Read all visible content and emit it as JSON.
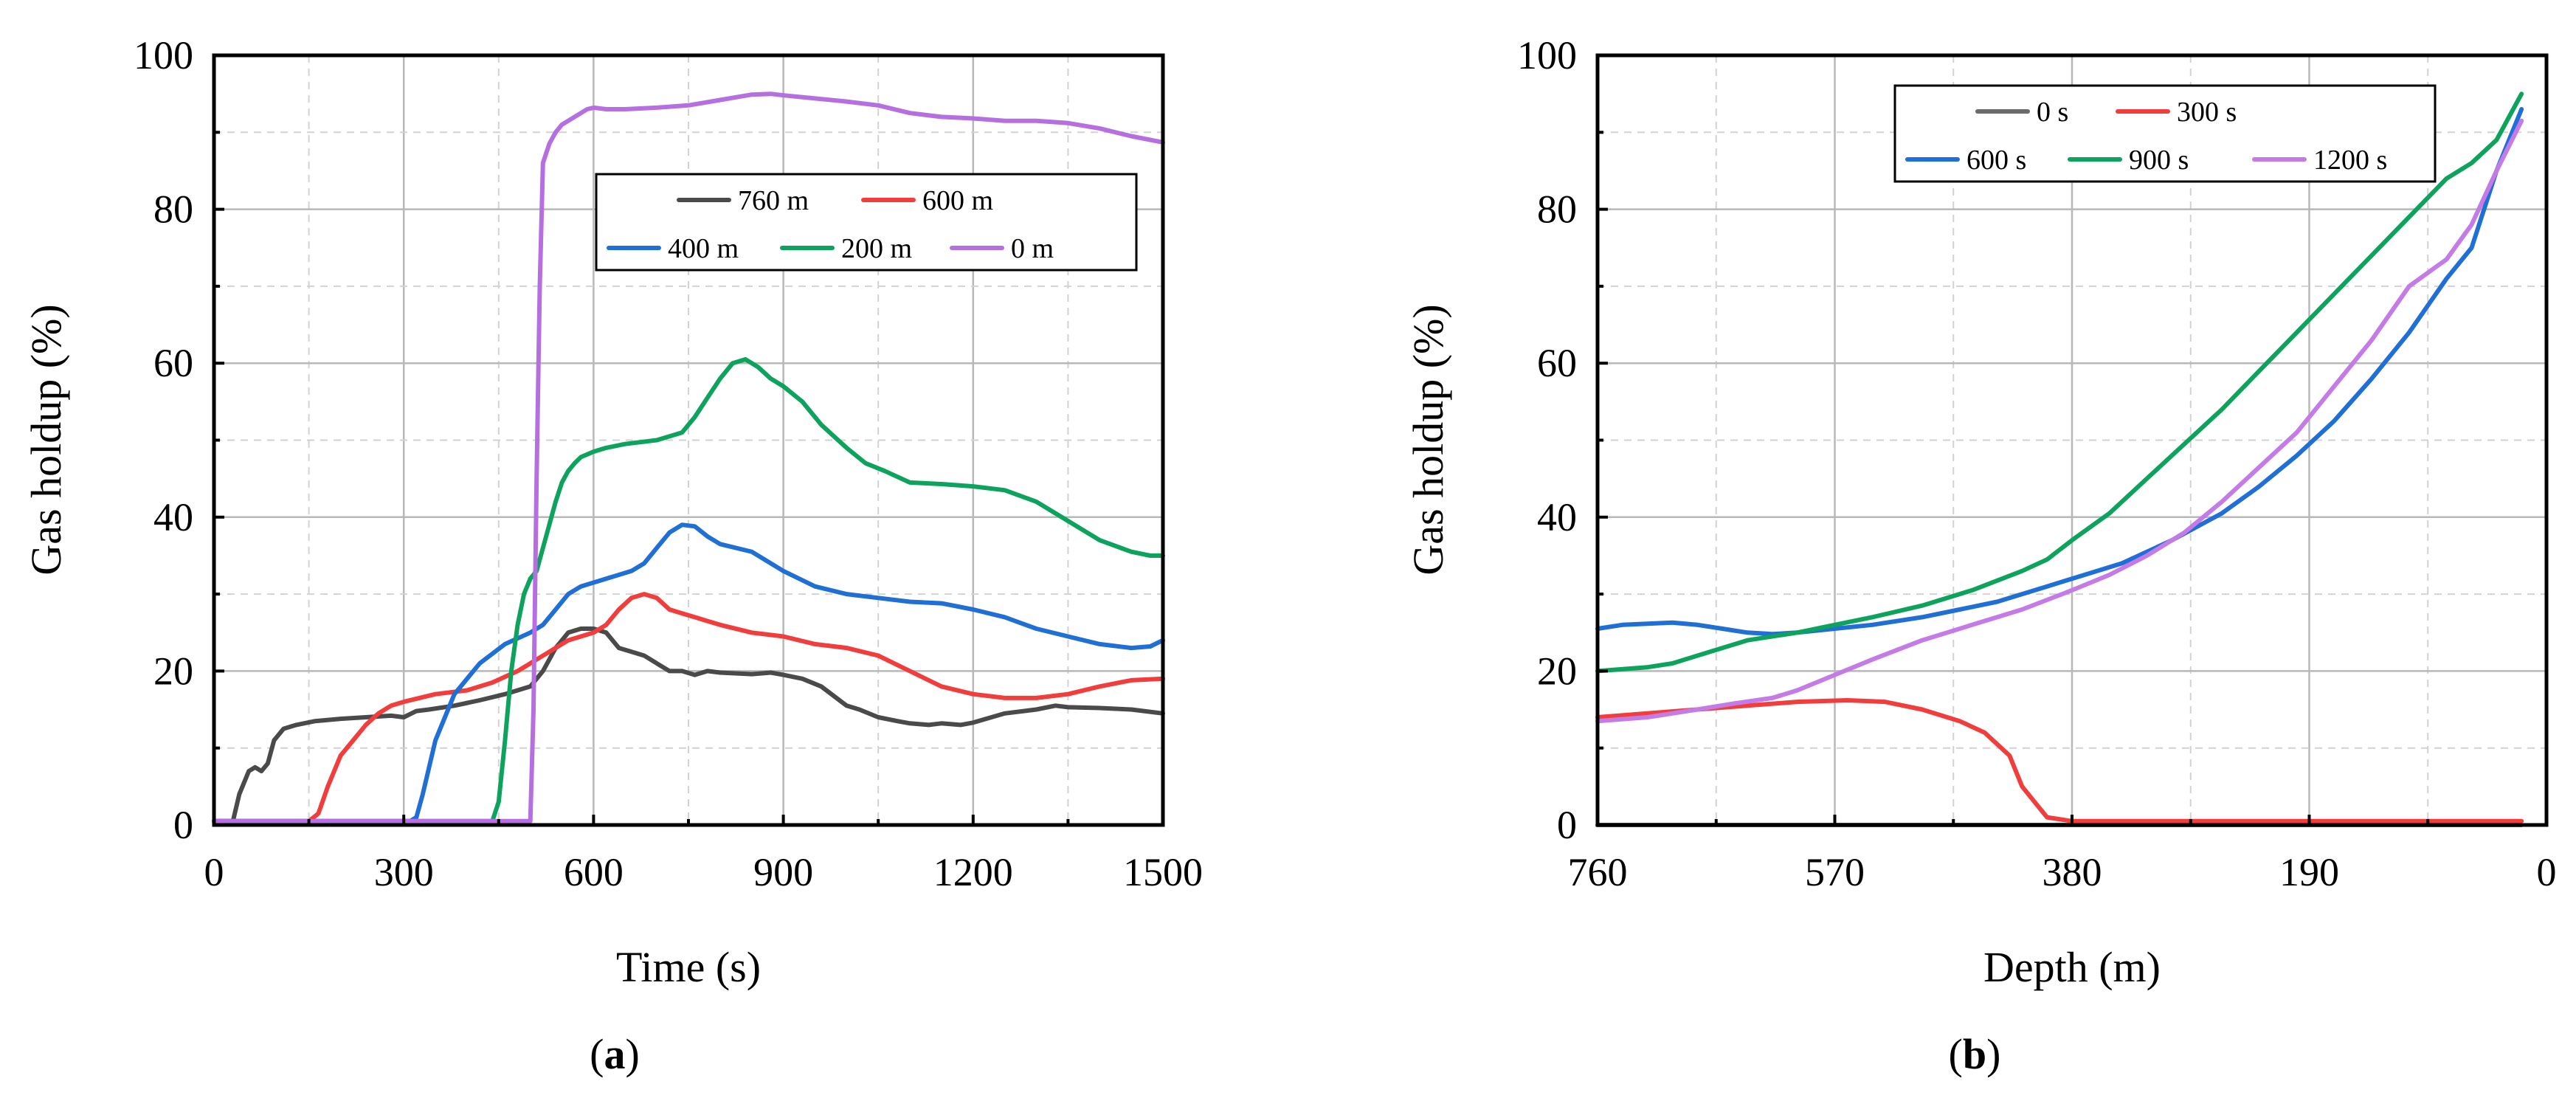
{
  "chart_data": [
    {
      "type": "line",
      "panel_label": "a",
      "xlabel": "Time (s)",
      "ylabel": "Gas holdup (%)",
      "xlim": [
        0,
        1500
      ],
      "ylim": [
        0,
        100
      ],
      "x_reversed": false,
      "xticks": [
        0,
        300,
        600,
        900,
        1200,
        1500
      ],
      "yticks": [
        0,
        20,
        40,
        60,
        80,
        100
      ],
      "legend_position": "upper-right",
      "legend_rows": [
        [
          0,
          1
        ],
        [
          2,
          3,
          4
        ]
      ],
      "series": [
        {
          "name": "760 m",
          "color": "#4a4a4a",
          "x": [
            0,
            20,
            30,
            40,
            55,
            65,
            75,
            85,
            95,
            110,
            130,
            160,
            200,
            240,
            280,
            300,
            320,
            340,
            380,
            420,
            460,
            500,
            520,
            540,
            560,
            580,
            600,
            620,
            640,
            660,
            680,
            700,
            720,
            740,
            760,
            780,
            800,
            850,
            880,
            900,
            930,
            960,
            1000,
            1020,
            1050,
            1080,
            1100,
            1130,
            1150,
            1180,
            1200,
            1250,
            1300,
            1330,
            1350,
            1400,
            1450,
            1500
          ],
          "y": [
            0.5,
            0.5,
            0.5,
            4,
            7,
            7.5,
            7,
            8,
            11,
            12.5,
            13,
            13.5,
            13.8,
            14,
            14.2,
            14,
            14.8,
            15,
            15.5,
            16.2,
            17,
            18,
            20,
            23,
            25,
            25.5,
            25.5,
            25,
            23,
            22.5,
            22,
            21,
            20,
            20,
            19.5,
            20,
            19.8,
            19.6,
            19.8,
            19.5,
            19,
            18,
            15.5,
            15,
            14,
            13.5,
            13.2,
            13,
            13.2,
            13,
            13.3,
            14.5,
            15,
            15.5,
            15.3,
            15.2,
            15,
            14.5
          ]
        },
        {
          "name": "600 m",
          "color": "#f23d3d",
          "x": [
            0,
            150,
            165,
            180,
            200,
            220,
            240,
            260,
            280,
            300,
            350,
            400,
            440,
            480,
            500,
            520,
            540,
            560,
            580,
            600,
            620,
            640,
            660,
            680,
            700,
            720,
            740,
            760,
            780,
            800,
            850,
            900,
            950,
            1000,
            1050,
            1100,
            1150,
            1200,
            1250,
            1300,
            1350,
            1400,
            1450,
            1500
          ],
          "y": [
            0.5,
            0.5,
            1.5,
            5,
            9,
            11,
            13,
            14.5,
            15.5,
            16,
            17,
            17.5,
            18.5,
            20,
            21,
            22,
            23,
            24,
            24.5,
            25,
            26,
            28,
            29.5,
            30,
            29.5,
            28,
            27.5,
            27,
            26.5,
            26,
            25,
            24.5,
            23.5,
            23,
            22,
            20,
            18,
            17,
            16.5,
            16.5,
            17,
            18,
            18.8,
            19
          ]
        },
        {
          "name": "400 m",
          "color": "#1f6fd6",
          "x": [
            0,
            300,
            310,
            320,
            330,
            350,
            380,
            420,
            460,
            500,
            520,
            540,
            560,
            580,
            600,
            620,
            640,
            660,
            680,
            700,
            720,
            740,
            760,
            780,
            800,
            850,
            900,
            950,
            1000,
            1050,
            1100,
            1150,
            1200,
            1250,
            1300,
            1350,
            1400,
            1450,
            1480,
            1500
          ],
          "y": [
            0.5,
            0.5,
            0.5,
            1,
            4,
            11,
            17,
            21,
            23.5,
            25,
            26,
            28,
            30,
            31,
            31.5,
            32,
            32.5,
            33,
            34,
            36,
            38,
            39,
            38.8,
            37.5,
            36.5,
            35.5,
            33,
            31,
            30,
            29.5,
            29,
            28.8,
            28,
            27,
            25.5,
            24.5,
            23.5,
            23,
            23.2,
            24
          ]
        },
        {
          "name": "200 m",
          "color": "#0ea35d",
          "x": [
            0,
            440,
            450,
            460,
            470,
            480,
            490,
            500,
            510,
            520,
            530,
            540,
            550,
            560,
            570,
            580,
            600,
            620,
            650,
            700,
            740,
            760,
            780,
            800,
            820,
            840,
            860,
            880,
            900,
            930,
            960,
            1000,
            1030,
            1060,
            1100,
            1150,
            1200,
            1250,
            1300,
            1350,
            1400,
            1450,
            1480,
            1500
          ],
          "y": [
            0.5,
            0.5,
            3,
            11,
            20,
            26,
            30,
            32,
            33,
            36,
            39,
            42,
            44.5,
            46,
            47,
            47.8,
            48.5,
            49,
            49.5,
            50,
            51,
            53,
            55.5,
            58,
            60,
            60.5,
            59.5,
            58,
            57,
            55,
            52,
            49,
            47,
            46,
            44.5,
            44.3,
            44,
            43.5,
            42,
            39.5,
            37,
            35.5,
            35,
            35
          ]
        },
        {
          "name": "0 m",
          "color": "#b66fe0",
          "x": [
            0,
            500,
            505,
            510,
            515,
            520,
            530,
            540,
            550,
            560,
            570,
            580,
            590,
            600,
            620,
            650,
            700,
            750,
            800,
            850,
            880,
            900,
            950,
            1000,
            1050,
            1100,
            1150,
            1200,
            1250,
            1300,
            1350,
            1400,
            1450,
            1500
          ],
          "y": [
            0.5,
            0.5,
            15,
            45,
            70,
            86,
            88.5,
            90,
            91,
            91.5,
            92,
            92.5,
            93,
            93.2,
            93,
            93,
            93.2,
            93.5,
            94.2,
            94.9,
            95,
            94.8,
            94.4,
            94,
            93.5,
            92.5,
            92,
            91.8,
            91.5,
            91.5,
            91.2,
            90.5,
            89.5,
            88.7
          ]
        }
      ]
    },
    {
      "type": "line",
      "panel_label": "b",
      "xlabel": "Depth (m)",
      "ylabel": "Gas holdup (%)",
      "xlim": [
        760,
        0
      ],
      "ylim": [
        0,
        100
      ],
      "x_reversed": true,
      "xticks": [
        760,
        570,
        380,
        190,
        0
      ],
      "yticks": [
        0,
        20,
        40,
        60,
        80,
        100
      ],
      "legend_position": "top-right",
      "legend_rows": [
        [
          0,
          1
        ],
        [
          2,
          3,
          4
        ]
      ],
      "series": [
        {
          "name": "0 s",
          "color": "#6b6b6b",
          "x": [
            760,
            20
          ],
          "y": [
            0,
            0
          ]
        },
        {
          "name": "300 s",
          "color": "#f23d3d",
          "x": [
            760,
            720,
            680,
            640,
            600,
            560,
            530,
            500,
            470,
            450,
            430,
            420,
            410,
            400,
            380,
            300,
            200,
            100,
            20
          ],
          "y": [
            14,
            14.5,
            15,
            15.5,
            16,
            16.2,
            16,
            15,
            13.5,
            12,
            9,
            5,
            3,
            1,
            0.5,
            0.5,
            0.5,
            0.5,
            0.5
          ]
        },
        {
          "name": "600 s",
          "color": "#1f6fd6",
          "x": [
            760,
            740,
            700,
            680,
            660,
            640,
            620,
            600,
            570,
            540,
            500,
            470,
            440,
            400,
            380,
            340,
            300,
            260,
            230,
            200,
            170,
            140,
            110,
            80,
            60,
            40,
            20
          ],
          "y": [
            25.5,
            26,
            26.3,
            26,
            25.5,
            25,
            24.8,
            25,
            25.5,
            26,
            27,
            28,
            29,
            31,
            32,
            34,
            37,
            40.5,
            44,
            48,
            52.5,
            58,
            64,
            71,
            75,
            85,
            93
          ]
        },
        {
          "name": "900 s",
          "color": "#0ea35d",
          "x": [
            760,
            720,
            700,
            680,
            660,
            640,
            600,
            570,
            540,
            500,
            460,
            420,
            400,
            380,
            350,
            320,
            290,
            260,
            230,
            200,
            170,
            140,
            110,
            80,
            60,
            40,
            20
          ],
          "y": [
            20,
            20.5,
            21,
            22,
            23,
            24,
            25,
            26,
            27,
            28.5,
            30.5,
            33,
            34.5,
            37,
            40.5,
            45,
            49.5,
            54,
            59,
            64,
            69,
            74,
            79,
            84,
            86,
            89,
            95
          ]
        },
        {
          "name": "1200 s",
          "color": "#c47be6",
          "x": [
            760,
            720,
            700,
            680,
            650,
            620,
            600,
            570,
            540,
            500,
            460,
            420,
            380,
            350,
            320,
            290,
            260,
            230,
            200,
            170,
            140,
            110,
            80,
            60,
            40,
            20
          ],
          "y": [
            13.5,
            14,
            14.5,
            15,
            15.8,
            16.5,
            17.5,
            19.5,
            21.5,
            24,
            26,
            28,
            30.5,
            32.5,
            35,
            38,
            42,
            46.5,
            51,
            57,
            63,
            70,
            73.5,
            78,
            85,
            91.5
          ]
        }
      ]
    }
  ]
}
